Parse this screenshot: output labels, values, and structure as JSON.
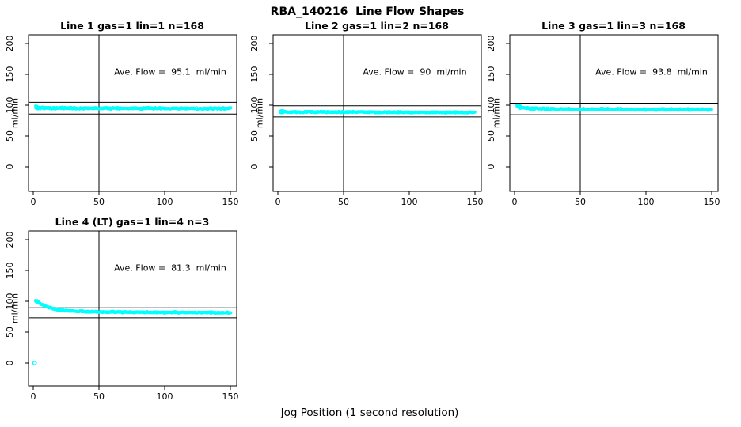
{
  "page": {
    "title": "RBA_140216  Line Flow Shapes",
    "xlabel": "Jog Position (1 second resolution)",
    "background": "#ffffff"
  },
  "chart_data": {
    "type": "scatter",
    "layout": "2x3 grid, 4 subplots used",
    "point_color": "#00FFFF",
    "line_color": "#000000",
    "ylabel": "ml/min",
    "x_ticks": [
      0,
      50,
      100,
      150
    ],
    "y_ticks": [
      0,
      50,
      100,
      150,
      200
    ],
    "xlim": [
      -4,
      155
    ],
    "ylim": [
      -38,
      216
    ],
    "grid": false,
    "vline_x": 50,
    "annotation_data_pos": {
      "x": 104,
      "y": 155
    },
    "plots": [
      {
        "title": "Line 1 gas=1 lin=1 n=168",
        "annotation": "Ave. Flow =  95.1  ml/min",
        "ave_flow_ml_min": 95.1,
        "n": 168,
        "hlines": [
          104.6,
          85.6
        ],
        "band_halfwidth": 1.6,
        "band_profile": [
          [
            2,
            96.5
          ],
          [
            6,
            95.5
          ],
          [
            20,
            95.2
          ],
          [
            50,
            95.0
          ],
          [
            100,
            94.6
          ],
          [
            150,
            94.5
          ]
        ],
        "outlier_points": []
      },
      {
        "title": "Line 2 gas=1 lin=2 n=168",
        "annotation": "Ave. Flow =  90  ml/min",
        "ave_flow_ml_min": 90,
        "n": 168,
        "hlines": [
          99.0,
          81.0
        ],
        "band_halfwidth": 1.2,
        "band_profile": [
          [
            2,
            89.5
          ],
          [
            10,
            89.0
          ],
          [
            50,
            88.8
          ],
          [
            100,
            88.5
          ],
          [
            150,
            88.3
          ]
        ],
        "outlier_points": []
      },
      {
        "title": "Line 3 gas=1 lin=3 n=168",
        "annotation": "Ave. Flow =  93.8  ml/min",
        "ave_flow_ml_min": 93.8,
        "n": 168,
        "hlines": [
          103.2,
          84.4
        ],
        "band_halfwidth": 1.6,
        "band_profile": [
          [
            2,
            98.0
          ],
          [
            5,
            96.0
          ],
          [
            12,
            94.5
          ],
          [
            30,
            93.8
          ],
          [
            80,
            93.2
          ],
          [
            150,
            93.0
          ]
        ],
        "outlier_points": []
      },
      {
        "title": "Line 4 (LT) gas=1 lin=4 n=3",
        "annotation": "Ave. Flow =  81.3  ml/min",
        "ave_flow_ml_min": 81.3,
        "n": 3,
        "hlines": [
          89.4,
          73.2
        ],
        "band_halfwidth": 1.2,
        "band_profile": [
          [
            2,
            100.5
          ],
          [
            5,
            96.5
          ],
          [
            10,
            91.5
          ],
          [
            15,
            88.0
          ],
          [
            20,
            86.0
          ],
          [
            30,
            84.0
          ],
          [
            45,
            83.0
          ],
          [
            70,
            82.3
          ],
          [
            110,
            82.0
          ],
          [
            150,
            81.6
          ]
        ],
        "outlier_points": [
          [
            1,
            0
          ]
        ]
      }
    ]
  }
}
